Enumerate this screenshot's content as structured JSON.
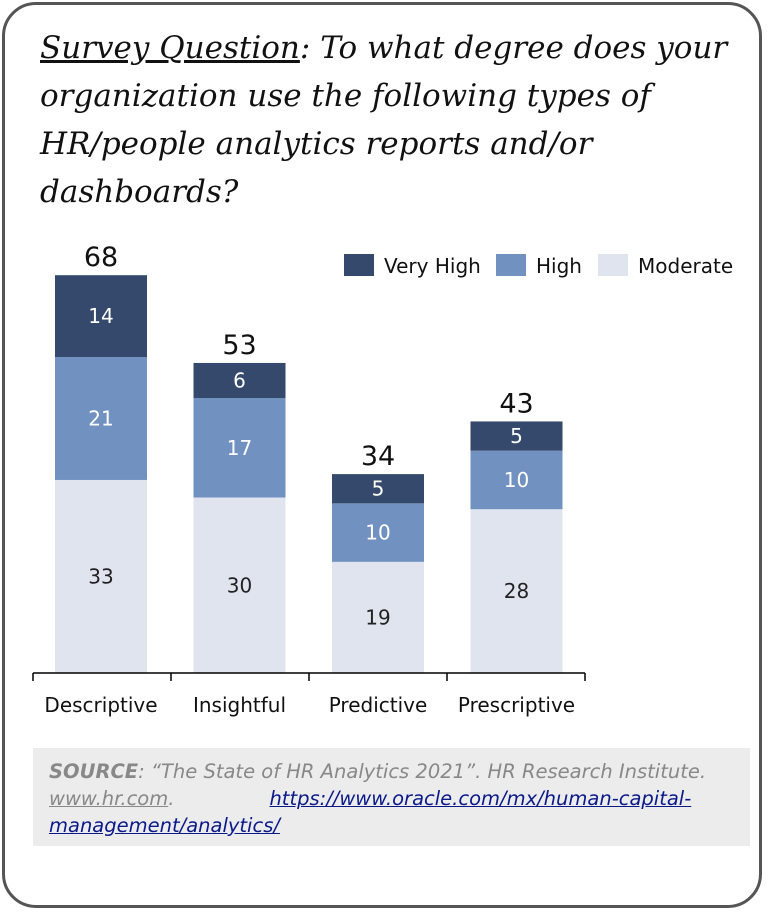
{
  "question": {
    "label": "Survey Question",
    "text": ": To what degree does your organization use the following types of HR/people analytics reports and/or dashboards?"
  },
  "colors": {
    "very_high": "#34496b",
    "high": "#7191c0",
    "moderate": "#dfe4ef",
    "axis": "#000000",
    "text": "#111111"
  },
  "chart_data": {
    "type": "bar",
    "stacked": true,
    "categories": [
      "Descriptive",
      "Insightful",
      "Predictive",
      "Prescriptive"
    ],
    "series": [
      {
        "name": "Moderate",
        "values": [
          33,
          30,
          19,
          28
        ]
      },
      {
        "name": "High",
        "values": [
          21,
          17,
          10,
          10
        ]
      },
      {
        "name": "Very High",
        "values": [
          14,
          6,
          5,
          5
        ]
      }
    ],
    "totals": [
      68,
      53,
      34,
      43
    ],
    "legend": [
      "Very High",
      "High",
      "Moderate"
    ],
    "legend_position": "top-right",
    "grid": false,
    "y_axis_visible": false
  },
  "source": {
    "label": "SOURCE",
    "text": ": “The State of HR Analytics 2021”. HR Research Institute.",
    "site": "www.hr.com",
    "after_site": ".",
    "link": "https://www.oracle.com/mx/human-capital-management/analytics/"
  }
}
